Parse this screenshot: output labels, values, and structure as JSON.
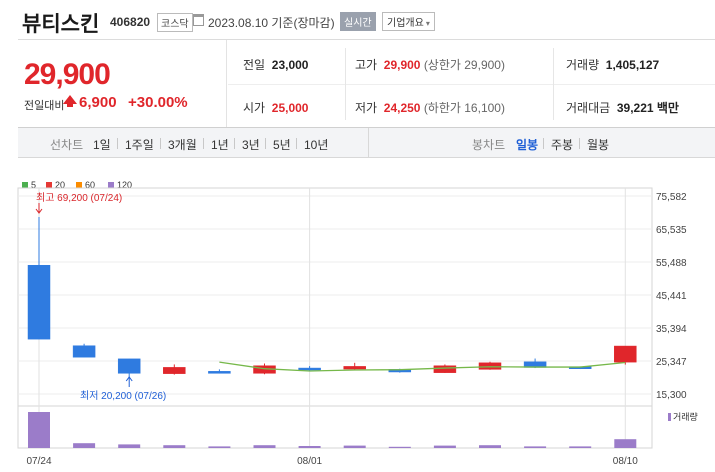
{
  "header": {
    "name": "뷰티스킨",
    "code": "406820",
    "market": "코스닥",
    "date": "2023.08.10 기준(장마감)",
    "realtime": "실시간",
    "company_info": "기업개요"
  },
  "price": {
    "current": "29,900",
    "prev_label": "전일대비",
    "change": "6,900",
    "change_pct": "+30.00%"
  },
  "stats": {
    "prev_close_label": "전일",
    "prev_close": "23,000",
    "open_label": "시가",
    "open": "25,000",
    "high_label": "고가",
    "high": "29,900",
    "high_sub": "(상한가 29,900)",
    "low_label": "저가",
    "low": "24,250",
    "low_sub": "(하한가 16,100)",
    "volume_label": "거래량",
    "volume": "1,405,127",
    "amount_label": "거래대금",
    "amount": "39,221 백만"
  },
  "period_bar": {
    "line_label": "선차트",
    "line_periods": [
      "1일",
      "1주일",
      "3개월",
      "1년",
      "3년",
      "5년",
      "10년"
    ],
    "candle_label": "봉차트",
    "candle_periods": [
      "일봉",
      "주봉",
      "월봉"
    ],
    "active": "일봉"
  },
  "legend": [
    {
      "label": "5",
      "color": "#4caf50"
    },
    {
      "label": "20",
      "color": "#e53935"
    },
    {
      "label": "60",
      "color": "#fb8c00"
    },
    {
      "label": "120",
      "color": "#9b7cc9"
    }
  ],
  "colors": {
    "up": "#e0262b",
    "down": "#2f7be0",
    "ma5": "#76b84a",
    "volume": "#9b7cc9"
  },
  "chart_data": {
    "type": "candlestick",
    "y_ticks": [
      "75,582",
      "65,535",
      "55,488",
      "45,441",
      "35,394",
      "25,347",
      "15,300"
    ],
    "ylim": [
      15300,
      75582
    ],
    "x_labels": [
      {
        "label": "07/24",
        "index": 0
      },
      {
        "label": "08/01",
        "index": 6
      },
      {
        "label": "08/10",
        "index": 13
      }
    ],
    "candles": [
      {
        "o": 54500,
        "h": 69200,
        "l": 32000,
        "c": 32000
      },
      {
        "o": 30000,
        "h": 30600,
        "l": 26500,
        "c": 26500
      },
      {
        "o": 26000,
        "h": 26000,
        "l": 20200,
        "c": 21600
      },
      {
        "o": 21500,
        "h": 24300,
        "l": 21200,
        "c": 23400
      },
      {
        "o": 22200,
        "h": 22800,
        "l": 21600,
        "c": 21900
      },
      {
        "o": 21600,
        "h": 24600,
        "l": 21300,
        "c": 23900
      },
      {
        "o": 23200,
        "h": 23800,
        "l": 22300,
        "c": 22800
      },
      {
        "o": 22900,
        "h": 24800,
        "l": 22700,
        "c": 23700
      },
      {
        "o": 22800,
        "h": 23000,
        "l": 21800,
        "c": 22000
      },
      {
        "o": 21800,
        "h": 24300,
        "l": 21700,
        "c": 23900
      },
      {
        "o": 22800,
        "h": 25100,
        "l": 22700,
        "c": 24800
      },
      {
        "o": 25100,
        "h": 26100,
        "l": 23200,
        "c": 23400
      },
      {
        "o": 23600,
        "h": 23700,
        "l": 22900,
        "c": 23000
      },
      {
        "o": 25000,
        "h": 29900,
        "l": 24250,
        "c": 29900
      }
    ],
    "ma5": [
      null,
      null,
      null,
      null,
      25000,
      23000,
      22300,
      22600,
      22700,
      23200,
      23600,
      23500,
      23500,
      24900
    ],
    "volume": [
      90,
      12,
      9,
      7,
      4,
      7,
      5,
      6,
      3,
      6,
      7,
      4,
      4,
      22
    ],
    "annotations": {
      "high": "최고 69,200 (07/24)",
      "low": "최저 20,200 (07/26)"
    },
    "volume_label": "거래량"
  }
}
